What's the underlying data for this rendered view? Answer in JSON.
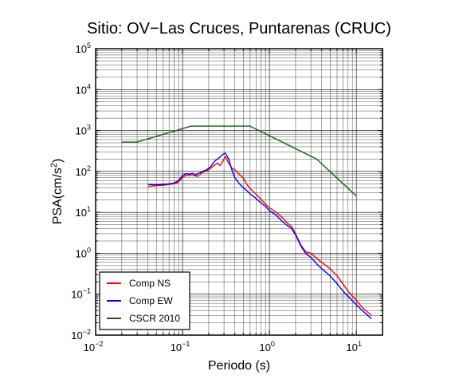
{
  "chart_data": {
    "type": "line",
    "title": "Sitio: OV−Las Cruces, Puntarenas (CRUC)",
    "xlabel": "Periodo (s)",
    "ylabel_main": "PSA(cm/s",
    "ylabel_sup": "2",
    "ylabel_tail": ")",
    "x_scale": "log",
    "y_scale": "log",
    "xlim": [
      0.01,
      20
    ],
    "ylim": [
      0.01,
      100000
    ],
    "grid": true,
    "legend_position": "bottom-left",
    "x_ticks": [
      {
        "value": 0.01,
        "base": "10",
        "exp": "−2"
      },
      {
        "value": 0.1,
        "base": "10",
        "exp": "−1"
      },
      {
        "value": 1,
        "base": "10",
        "exp": "0"
      },
      {
        "value": 10,
        "base": "10",
        "exp": "1"
      }
    ],
    "y_ticks": [
      {
        "value": 0.01,
        "base": "10",
        "exp": "−2"
      },
      {
        "value": 0.1,
        "base": "10",
        "exp": "−1"
      },
      {
        "value": 1,
        "base": "10",
        "exp": "0"
      },
      {
        "value": 10,
        "base": "10",
        "exp": "1"
      },
      {
        "value": 100,
        "base": "10",
        "exp": "2"
      },
      {
        "value": 1000,
        "base": "10",
        "exp": "3"
      },
      {
        "value": 10000,
        "base": "10",
        "exp": "4"
      },
      {
        "value": 100000,
        "base": "10",
        "exp": "5"
      }
    ],
    "series": [
      {
        "name": "Comp NS",
        "color": "#ff0000",
        "x": [
          0.04,
          0.05,
          0.06,
          0.07,
          0.08,
          0.09,
          0.1,
          0.11,
          0.12,
          0.13,
          0.14,
          0.15,
          0.17,
          0.19,
          0.21,
          0.23,
          0.25,
          0.27,
          0.29,
          0.31,
          0.34,
          0.37,
          0.4,
          0.45,
          0.5,
          0.55,
          0.6,
          0.7,
          0.8,
          0.9,
          1.0,
          1.2,
          1.4,
          1.6,
          1.8,
          2.0,
          2.3,
          2.6,
          3.0,
          3.5,
          4.0,
          5.0,
          6.0,
          7.0,
          8.0,
          10.0,
          12.0,
          15.0
        ],
        "y": [
          43,
          45,
          46,
          48,
          50,
          55,
          72,
          80,
          80,
          82,
          78,
          76,
          95,
          103,
          118,
          140,
          160,
          140,
          175,
          230,
          160,
          120,
          110,
          85,
          70,
          48,
          38,
          28,
          21,
          16,
          13,
          10,
          7.5,
          5.5,
          4.5,
          3.0,
          1.6,
          1.1,
          1.0,
          0.75,
          0.6,
          0.42,
          0.28,
          0.18,
          0.12,
          0.07,
          0.045,
          0.03
        ]
      },
      {
        "name": "Comp EW",
        "color": "#0000ff",
        "x": [
          0.04,
          0.05,
          0.06,
          0.07,
          0.08,
          0.09,
          0.1,
          0.11,
          0.12,
          0.13,
          0.14,
          0.15,
          0.17,
          0.19,
          0.21,
          0.23,
          0.25,
          0.27,
          0.29,
          0.31,
          0.34,
          0.37,
          0.4,
          0.45,
          0.5,
          0.55,
          0.6,
          0.7,
          0.8,
          0.9,
          1.0,
          1.2,
          1.4,
          1.6,
          1.8,
          2.0,
          2.3,
          2.6,
          3.0,
          3.5,
          4.0,
          5.0,
          6.0,
          7.0,
          8.0,
          10.0,
          12.0,
          15.0
        ],
        "y": [
          48,
          47,
          48,
          50,
          52,
          60,
          80,
          88,
          85,
          90,
          82,
          88,
          100,
          110,
          130,
          170,
          200,
          225,
          260,
          280,
          200,
          110,
          70,
          50,
          40,
          34,
          28,
          22,
          17,
          14,
          11,
          8.5,
          6.0,
          4.8,
          4.0,
          2.8,
          1.5,
          1.0,
          0.8,
          0.55,
          0.42,
          0.28,
          0.18,
          0.12,
          0.09,
          0.055,
          0.038,
          0.025
        ]
      },
      {
        "name": "CSCR 2010",
        "color": "#1a5e1a",
        "x": [
          0.02,
          0.03,
          0.125,
          0.6,
          3.5,
          10.0
        ],
        "y": [
          520,
          520,
          1280,
          1280,
          200,
          25
        ]
      }
    ]
  }
}
